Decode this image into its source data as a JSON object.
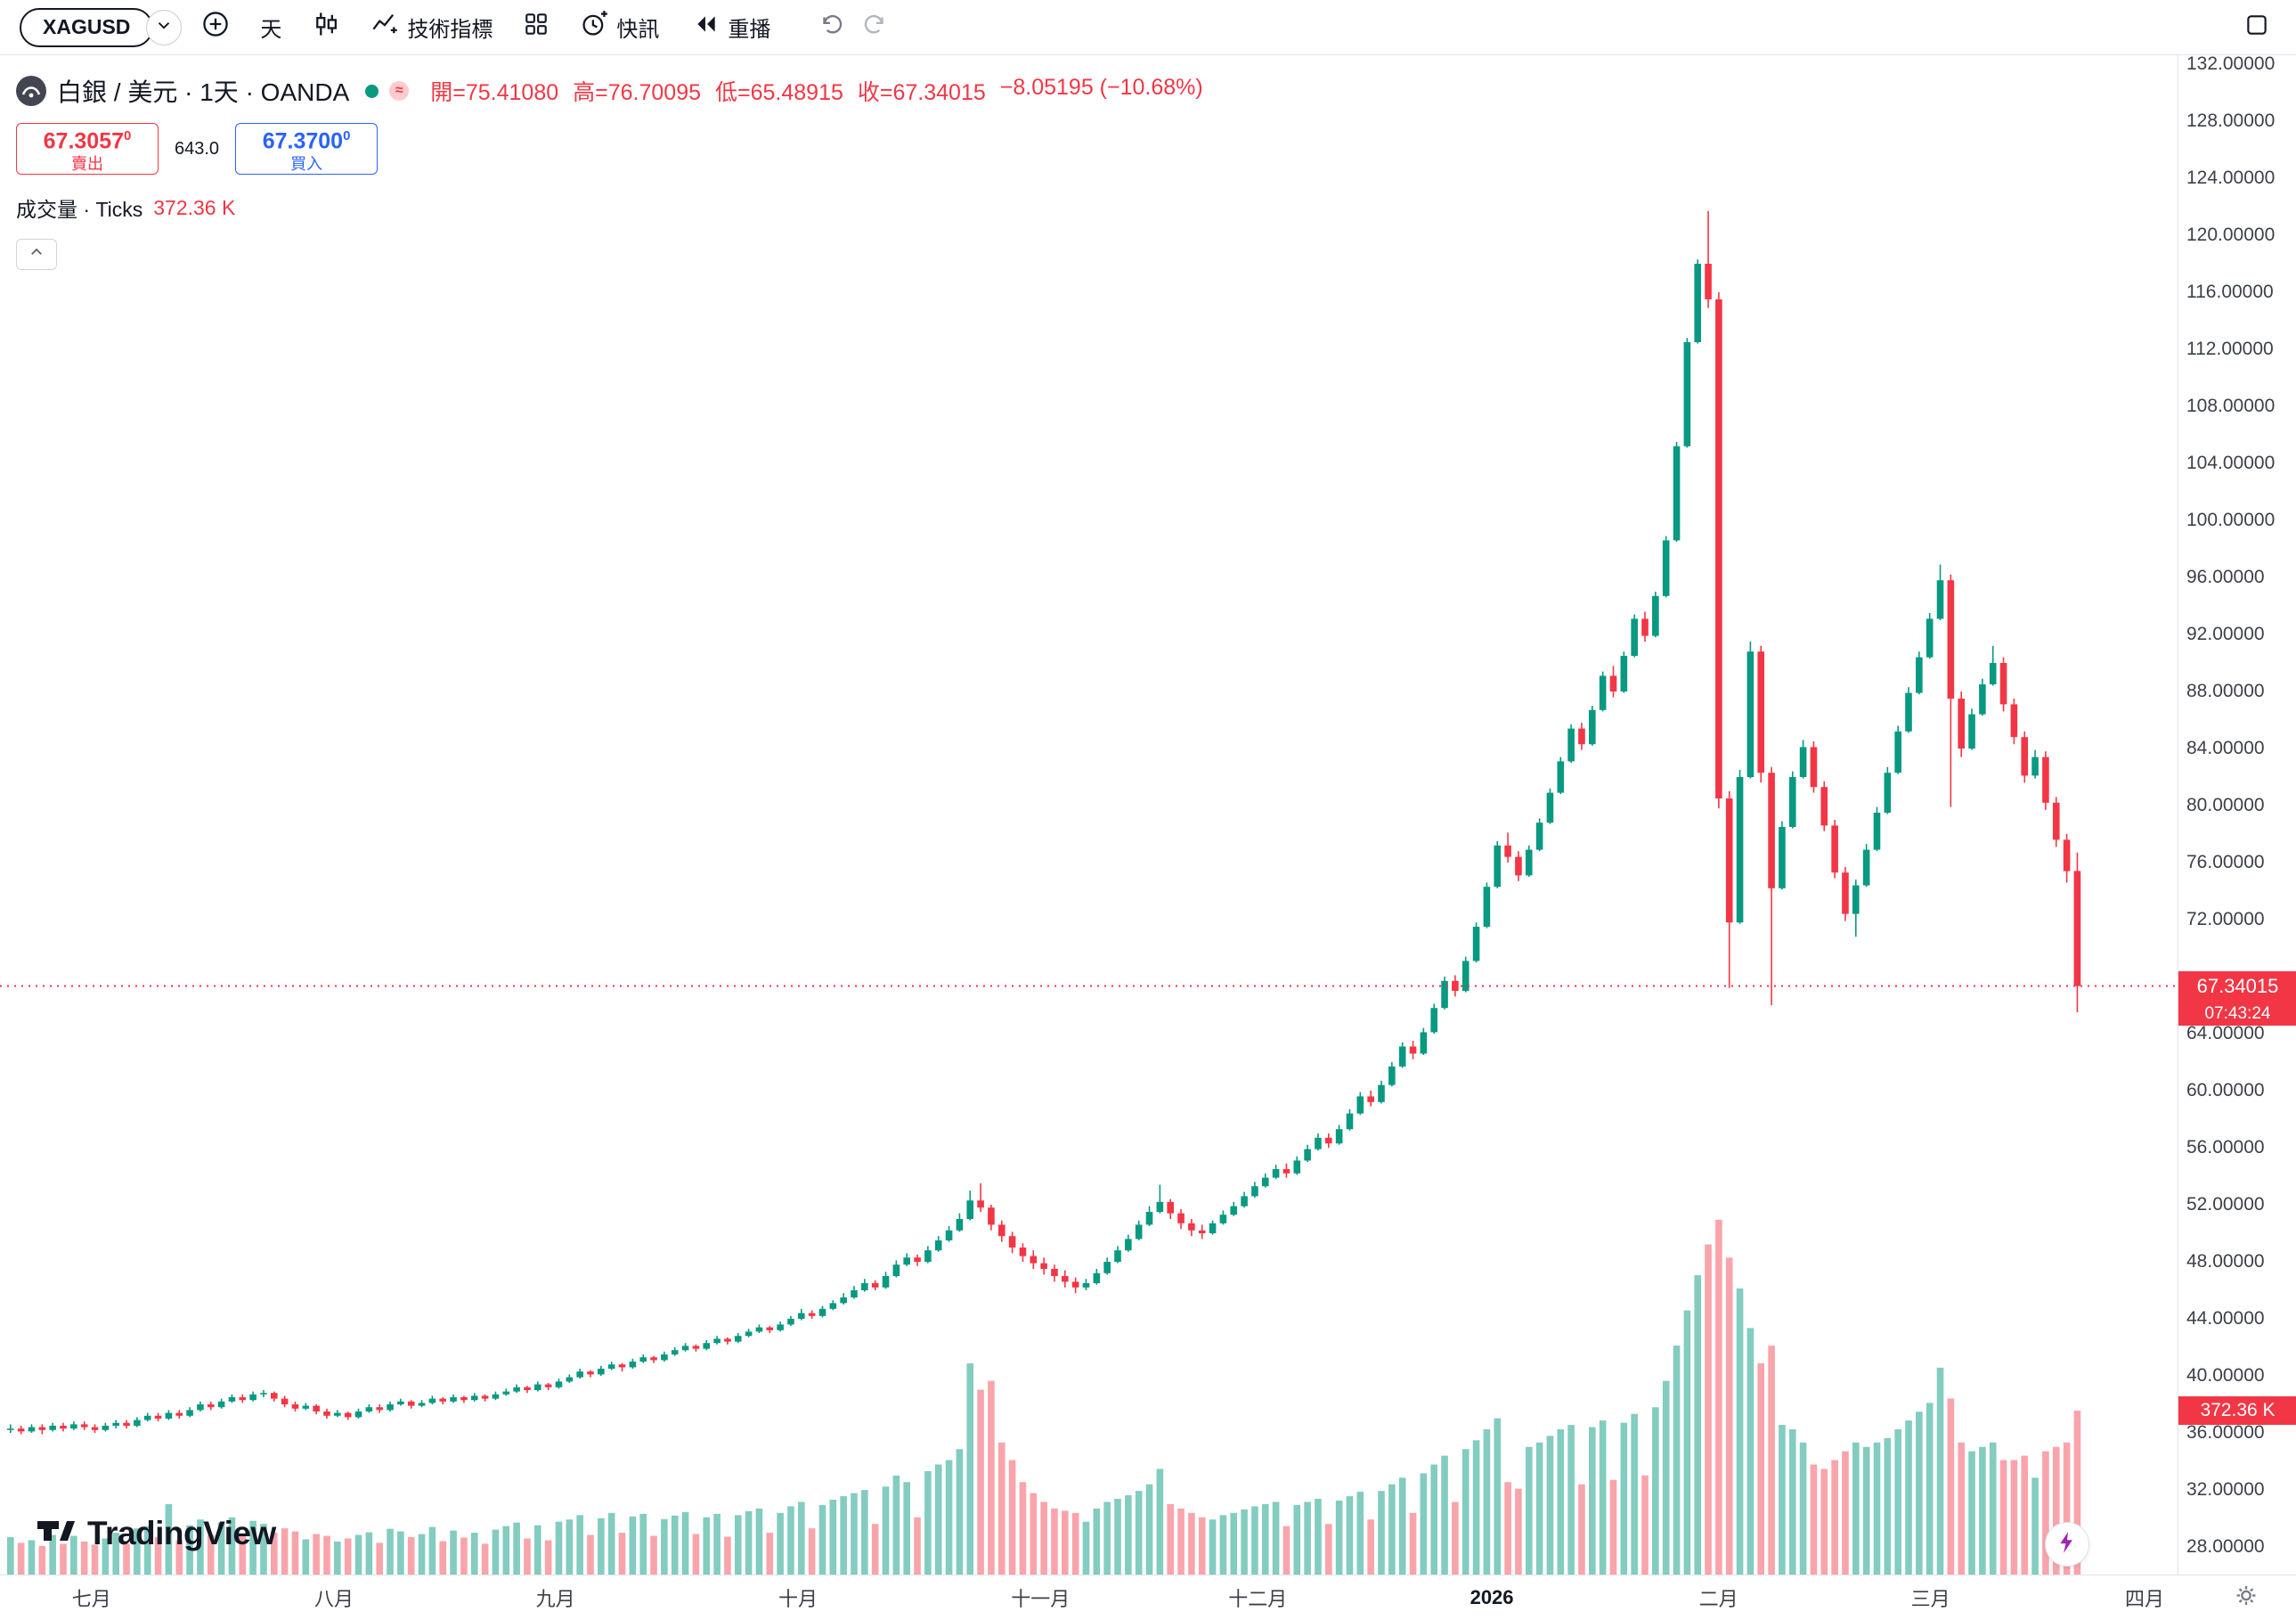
{
  "toolbar": {
    "symbol": "XAGUSD",
    "interval": "天",
    "indicators_label": "技術指標",
    "alerts_label": "快訊",
    "replay_label": "重播"
  },
  "header": {
    "title": "白銀 / 美元 · 1天 · OANDA",
    "ohlc": [
      "開=75.41080",
      "高=76.70095",
      "低=65.48915",
      "收=67.34015",
      "−8.05195 (−10.68%)"
    ]
  },
  "trade_panel": {
    "sell_price": "67.3057",
    "sell_sup": "0",
    "sell_label": "賣出",
    "spread": "643.0",
    "buy_price": "67.3700",
    "buy_sup": "0",
    "buy_label": "買入"
  },
  "volume_row": {
    "label": "成交量 · Ticks",
    "value": "372.36 K"
  },
  "footer": {
    "brand": "TradingView"
  },
  "chart_data": {
    "type": "candlestick",
    "symbol": "XAGUSD",
    "title": "白銀 / 美元 · 1天 · OANDA",
    "colors": {
      "up": "#089981",
      "down": "#F23645",
      "vol_up": "rgba(8,153,129,0.5)",
      "vol_down": "rgba(242,54,69,0.45)"
    },
    "y_axis": {
      "min": 27.5,
      "max": 132.6,
      "tick_step": 4,
      "tick_labels": [
        "132.00000",
        "128.00000",
        "124.00000",
        "120.00000",
        "116.00000",
        "112.00000",
        "108.00000",
        "104.00000",
        "100.00000",
        "96.00000",
        "92.00000",
        "88.00000",
        "84.00000",
        "80.00000",
        "76.00000",
        "72.00000",
        "64.00000",
        "60.00000",
        "56.00000",
        "52.00000",
        "48.00000",
        "44.00000",
        "40.00000",
        "36.00000",
        "32.00000",
        "28.00000"
      ]
    },
    "x_axis": {
      "labels": [
        {
          "label": "七月",
          "index": 8
        },
        {
          "label": "八月",
          "index": 31
        },
        {
          "label": "九月",
          "index": 52
        },
        {
          "label": "十月",
          "index": 75
        },
        {
          "label": "十一月",
          "index": 98
        },
        {
          "label": "十二月",
          "index": 118.6
        },
        {
          "label": "2026",
          "index": 140.8,
          "bold": true
        },
        {
          "label": "二月",
          "index": 162.3
        },
        {
          "label": "三月",
          "index": 182.4
        },
        {
          "label": "四月",
          "index": 202.7
        }
      ]
    },
    "last_price": {
      "value": 67.34015,
      "label": "67.34015",
      "countdown": "07:43:24"
    },
    "volume_label": "372.36 K",
    "volume_unit": "K",
    "ohlcv": [
      [
        36.2,
        36.6,
        36.0,
        36.3,
        85
      ],
      [
        36.3,
        36.5,
        35.9,
        36.1,
        72
      ],
      [
        36.1,
        36.6,
        36.0,
        36.4,
        78
      ],
      [
        36.4,
        36.6,
        35.9,
        36.2,
        65
      ],
      [
        36.2,
        36.7,
        36.1,
        36.5,
        90
      ],
      [
        36.5,
        36.7,
        36.1,
        36.3,
        70
      ],
      [
        36.3,
        36.8,
        36.2,
        36.6,
        88
      ],
      [
        36.6,
        36.8,
        36.2,
        36.4,
        75
      ],
      [
        36.4,
        36.6,
        36.0,
        36.2,
        68
      ],
      [
        36.2,
        36.7,
        36.1,
        36.5,
        82
      ],
      [
        36.5,
        36.9,
        36.3,
        36.7,
        95
      ],
      [
        36.7,
        36.9,
        36.3,
        36.5,
        70
      ],
      [
        36.5,
        37.1,
        36.4,
        36.9,
        105
      ],
      [
        36.9,
        37.4,
        36.8,
        37.2,
        110
      ],
      [
        37.2,
        37.4,
        36.8,
        37.0,
        85
      ],
      [
        37.0,
        37.6,
        36.9,
        37.4,
        160
      ],
      [
        37.4,
        37.6,
        37.0,
        37.2,
        78
      ],
      [
        37.2,
        37.8,
        37.1,
        37.6,
        112
      ],
      [
        37.6,
        38.2,
        37.5,
        38.0,
        125
      ],
      [
        38.0,
        38.2,
        37.6,
        37.8,
        90
      ],
      [
        37.8,
        38.4,
        37.7,
        38.2,
        118
      ],
      [
        38.2,
        38.7,
        38.1,
        38.5,
        130
      ],
      [
        38.5,
        38.7,
        38.1,
        38.3,
        88
      ],
      [
        38.3,
        38.9,
        38.2,
        38.7,
        122
      ],
      [
        38.7,
        39.0,
        38.5,
        38.8,
        115
      ],
      [
        38.8,
        38.9,
        38.2,
        38.4,
        95
      ],
      [
        38.4,
        38.6,
        37.8,
        38.0,
        105
      ],
      [
        38.0,
        38.2,
        37.5,
        37.7,
        98
      ],
      [
        37.7,
        38.1,
        37.6,
        37.9,
        80
      ],
      [
        37.9,
        38.0,
        37.3,
        37.5,
        92
      ],
      [
        37.5,
        37.7,
        37.0,
        37.2,
        88
      ],
      [
        37.2,
        37.6,
        37.1,
        37.4,
        75
      ],
      [
        37.4,
        37.5,
        36.9,
        37.1,
        82
      ],
      [
        37.1,
        37.7,
        37.0,
        37.5,
        90
      ],
      [
        37.5,
        38.0,
        37.4,
        37.8,
        96
      ],
      [
        37.8,
        38.0,
        37.4,
        37.6,
        72
      ],
      [
        37.6,
        38.2,
        37.5,
        38.0,
        104
      ],
      [
        38.0,
        38.4,
        37.9,
        38.2,
        98
      ],
      [
        38.2,
        38.3,
        37.7,
        37.9,
        85
      ],
      [
        37.9,
        38.3,
        37.8,
        38.1,
        92
      ],
      [
        38.1,
        38.6,
        38.0,
        38.4,
        108
      ],
      [
        38.4,
        38.5,
        38.0,
        38.2,
        76
      ],
      [
        38.2,
        38.7,
        38.1,
        38.5,
        100
      ],
      [
        38.5,
        38.6,
        38.1,
        38.3,
        84
      ],
      [
        38.3,
        38.8,
        38.2,
        38.6,
        95
      ],
      [
        38.6,
        38.7,
        38.2,
        38.4,
        70
      ],
      [
        38.4,
        38.9,
        38.3,
        38.7,
        102
      ],
      [
        38.7,
        39.1,
        38.6,
        38.9,
        110
      ],
      [
        38.9,
        39.4,
        38.8,
        39.2,
        118
      ],
      [
        39.2,
        39.3,
        38.8,
        39.0,
        82
      ],
      [
        39.0,
        39.6,
        38.9,
        39.4,
        112
      ],
      [
        39.4,
        39.5,
        39.0,
        39.2,
        78
      ],
      [
        39.2,
        39.8,
        39.1,
        39.6,
        120
      ],
      [
        39.6,
        40.1,
        39.5,
        39.9,
        125
      ],
      [
        39.9,
        40.5,
        39.8,
        40.3,
        135
      ],
      [
        40.3,
        40.4,
        39.9,
        40.1,
        90
      ],
      [
        40.1,
        40.7,
        40.0,
        40.5,
        128
      ],
      [
        40.5,
        41.0,
        40.4,
        40.8,
        140
      ],
      [
        40.8,
        40.9,
        40.3,
        40.6,
        95
      ],
      [
        40.6,
        41.2,
        40.5,
        41.0,
        132
      ],
      [
        41.0,
        41.5,
        40.9,
        41.3,
        138
      ],
      [
        41.3,
        41.4,
        40.9,
        41.1,
        88
      ],
      [
        41.1,
        41.7,
        41.0,
        41.5,
        126
      ],
      [
        41.5,
        42.0,
        41.4,
        41.8,
        134
      ],
      [
        41.8,
        42.3,
        41.7,
        42.1,
        142
      ],
      [
        42.1,
        42.2,
        41.7,
        41.9,
        92
      ],
      [
        41.9,
        42.5,
        41.8,
        42.3,
        130
      ],
      [
        42.3,
        42.8,
        42.2,
        42.6,
        138
      ],
      [
        42.6,
        42.7,
        42.2,
        42.4,
        86
      ],
      [
        42.4,
        43.0,
        42.3,
        42.8,
        135
      ],
      [
        42.8,
        43.3,
        42.7,
        43.1,
        144
      ],
      [
        43.1,
        43.6,
        43.0,
        43.4,
        150
      ],
      [
        43.4,
        43.5,
        43.0,
        43.2,
        95
      ],
      [
        43.2,
        43.8,
        43.1,
        43.6,
        140
      ],
      [
        43.6,
        44.2,
        43.5,
        44.0,
        155
      ],
      [
        44.0,
        44.7,
        43.9,
        44.4,
        165
      ],
      [
        44.4,
        44.6,
        44.0,
        44.2,
        105
      ],
      [
        44.2,
        44.9,
        44.1,
        44.7,
        158
      ],
      [
        44.7,
        45.3,
        44.6,
        45.1,
        170
      ],
      [
        45.1,
        45.8,
        45.0,
        45.5,
        178
      ],
      [
        45.5,
        46.3,
        45.4,
        46.0,
        185
      ],
      [
        46.0,
        46.8,
        45.9,
        46.5,
        192
      ],
      [
        46.5,
        46.7,
        46.0,
        46.2,
        115
      ],
      [
        46.2,
        47.3,
        46.1,
        47.0,
        200
      ],
      [
        47.0,
        48.1,
        46.9,
        47.8,
        225
      ],
      [
        47.8,
        48.6,
        47.7,
        48.3,
        210
      ],
      [
        48.3,
        48.5,
        47.7,
        48.0,
        130
      ],
      [
        48.0,
        49.1,
        47.9,
        48.8,
        235
      ],
      [
        48.8,
        49.8,
        48.7,
        49.5,
        250
      ],
      [
        49.5,
        50.5,
        49.4,
        50.2,
        260
      ],
      [
        50.2,
        51.4,
        50.1,
        51.0,
        285
      ],
      [
        51.0,
        53.0,
        50.9,
        52.3,
        480
      ],
      [
        52.3,
        53.5,
        51.5,
        51.8,
        420
      ],
      [
        51.8,
        52.0,
        50.2,
        50.6,
        440
      ],
      [
        50.6,
        50.9,
        49.4,
        49.8,
        300
      ],
      [
        49.8,
        50.1,
        48.6,
        49.0,
        260
      ],
      [
        49.0,
        49.3,
        48.0,
        48.4,
        210
      ],
      [
        48.4,
        48.8,
        47.5,
        47.9,
        185
      ],
      [
        47.9,
        48.3,
        47.1,
        47.5,
        165
      ],
      [
        47.5,
        47.8,
        46.6,
        47.0,
        150
      ],
      [
        47.0,
        47.4,
        46.2,
        46.6,
        145
      ],
      [
        46.6,
        46.9,
        45.8,
        46.2,
        140
      ],
      [
        46.2,
        46.8,
        46.0,
        46.5,
        120
      ],
      [
        46.5,
        47.5,
        46.4,
        47.2,
        150
      ],
      [
        47.2,
        48.3,
        47.1,
        48.0,
        165
      ],
      [
        48.0,
        49.1,
        47.9,
        48.8,
        172
      ],
      [
        48.8,
        49.9,
        48.7,
        49.6,
        180
      ],
      [
        49.6,
        50.9,
        49.5,
        50.6,
        190
      ],
      [
        50.6,
        51.9,
        50.5,
        51.5,
        205
      ],
      [
        51.5,
        53.4,
        51.4,
        52.2,
        240
      ],
      [
        52.2,
        52.4,
        51.0,
        51.4,
        160
      ],
      [
        51.4,
        51.7,
        50.3,
        50.7,
        150
      ],
      [
        50.7,
        51.0,
        49.8,
        50.2,
        140
      ],
      [
        50.2,
        50.6,
        49.6,
        50.0,
        130
      ],
      [
        50.0,
        50.9,
        49.9,
        50.7,
        125
      ],
      [
        50.7,
        51.6,
        50.6,
        51.3,
        135
      ],
      [
        51.3,
        52.2,
        51.2,
        51.9,
        140
      ],
      [
        51.9,
        52.9,
        51.8,
        52.6,
        148
      ],
      [
        52.6,
        53.6,
        52.5,
        53.3,
        155
      ],
      [
        53.3,
        54.2,
        53.2,
        53.9,
        160
      ],
      [
        53.9,
        54.8,
        53.8,
        54.5,
        165
      ],
      [
        54.5,
        54.9,
        53.9,
        54.2,
        110
      ],
      [
        54.2,
        55.4,
        54.1,
        55.1,
        158
      ],
      [
        55.1,
        56.2,
        55.0,
        55.9,
        165
      ],
      [
        55.9,
        57.0,
        55.8,
        56.7,
        172
      ],
      [
        56.7,
        57.0,
        56.0,
        56.3,
        115
      ],
      [
        56.3,
        57.6,
        56.2,
        57.3,
        168
      ],
      [
        57.3,
        58.7,
        57.2,
        58.4,
        178
      ],
      [
        58.4,
        59.9,
        58.3,
        59.6,
        188
      ],
      [
        59.6,
        60.0,
        58.9,
        59.2,
        125
      ],
      [
        59.2,
        60.7,
        59.1,
        60.4,
        190
      ],
      [
        60.4,
        62.0,
        60.3,
        61.7,
        205
      ],
      [
        61.7,
        63.4,
        61.6,
        63.1,
        220
      ],
      [
        63.1,
        63.5,
        62.2,
        62.6,
        140
      ],
      [
        62.6,
        64.4,
        62.5,
        64.1,
        230
      ],
      [
        64.1,
        66.1,
        64.0,
        65.8,
        250
      ],
      [
        65.8,
        68.0,
        65.7,
        67.7,
        270
      ],
      [
        67.7,
        68.1,
        66.6,
        67.0,
        165
      ],
      [
        67.0,
        69.4,
        66.9,
        69.1,
        285
      ],
      [
        69.1,
        71.8,
        69.0,
        71.5,
        305
      ],
      [
        71.5,
        74.6,
        71.4,
        74.3,
        330
      ],
      [
        74.3,
        77.5,
        74.2,
        77.2,
        355
      ],
      [
        77.2,
        78.1,
        76.0,
        76.4,
        210
      ],
      [
        76.4,
        76.8,
        74.7,
        75.1,
        195
      ],
      [
        75.1,
        77.2,
        75.0,
        76.9,
        290
      ],
      [
        76.9,
        79.1,
        76.8,
        78.8,
        300
      ],
      [
        78.8,
        81.2,
        78.7,
        80.9,
        315
      ],
      [
        80.9,
        83.4,
        80.8,
        83.1,
        330
      ],
      [
        83.1,
        85.7,
        83.0,
        85.4,
        340
      ],
      [
        85.4,
        85.8,
        83.9,
        84.3,
        205
      ],
      [
        84.3,
        87.0,
        84.2,
        86.7,
        335
      ],
      [
        86.7,
        89.4,
        86.6,
        89.1,
        350
      ],
      [
        89.1,
        89.8,
        87.6,
        88.0,
        215
      ],
      [
        88.0,
        90.8,
        87.9,
        90.5,
        345
      ],
      [
        90.5,
        93.4,
        90.4,
        93.1,
        365
      ],
      [
        93.1,
        93.6,
        91.5,
        91.9,
        225
      ],
      [
        91.9,
        95.0,
        91.8,
        94.7,
        380
      ],
      [
        94.7,
        98.9,
        94.6,
        98.6,
        440
      ],
      [
        98.6,
        105.5,
        98.5,
        105.2,
        520
      ],
      [
        105.2,
        112.8,
        105.1,
        112.5,
        600
      ],
      [
        112.5,
        118.3,
        112.4,
        118.0,
        680
      ],
      [
        118.0,
        121.7,
        114.9,
        115.5,
        750
      ],
      [
        115.5,
        116.0,
        79.8,
        80.5,
        806
      ],
      [
        80.5,
        81.0,
        67.2,
        71.8,
        720
      ],
      [
        71.8,
        82.5,
        71.7,
        82.0,
        650
      ],
      [
        82.0,
        91.5,
        81.9,
        90.8,
        560
      ],
      [
        90.8,
        91.2,
        81.6,
        82.3,
        480
      ],
      [
        82.3,
        82.7,
        66.0,
        74.2,
        520
      ],
      [
        74.2,
        78.9,
        74.1,
        78.5,
        340
      ],
      [
        78.5,
        82.4,
        78.4,
        82.0,
        330
      ],
      [
        82.0,
        84.6,
        81.9,
        84.1,
        300
      ],
      [
        84.1,
        84.5,
        80.9,
        81.3,
        250
      ],
      [
        81.3,
        81.7,
        78.2,
        78.6,
        240
      ],
      [
        78.6,
        79.0,
        74.9,
        75.3,
        260
      ],
      [
        75.3,
        75.7,
        71.9,
        72.4,
        280
      ],
      [
        72.4,
        74.8,
        70.8,
        74.4,
        300
      ],
      [
        74.4,
        77.3,
        74.3,
        76.9,
        290
      ],
      [
        76.9,
        79.9,
        76.8,
        79.5,
        300
      ],
      [
        79.5,
        82.7,
        79.4,
        82.3,
        310
      ],
      [
        82.3,
        85.6,
        82.2,
        85.2,
        330
      ],
      [
        85.2,
        88.3,
        85.1,
        87.9,
        350
      ],
      [
        87.9,
        90.8,
        87.8,
        90.4,
        370
      ],
      [
        90.4,
        93.5,
        90.3,
        93.1,
        390
      ],
      [
        93.1,
        96.9,
        93.0,
        95.8,
        470
      ],
      [
        95.8,
        96.2,
        79.9,
        87.5,
        400
      ],
      [
        87.5,
        88.0,
        83.4,
        84.0,
        300
      ],
      [
        84.0,
        86.8,
        83.9,
        86.4,
        280
      ],
      [
        86.4,
        88.9,
        86.3,
        88.5,
        290
      ],
      [
        88.5,
        91.2,
        88.4,
        90.0,
        300
      ],
      [
        90.0,
        90.4,
        86.6,
        87.1,
        260
      ],
      [
        87.1,
        87.5,
        84.3,
        84.8,
        260
      ],
      [
        84.8,
        85.2,
        81.6,
        82.1,
        270
      ],
      [
        82.1,
        83.9,
        81.9,
        83.4,
        220
      ],
      [
        83.4,
        83.8,
        79.7,
        80.2,
        280
      ],
      [
        80.2,
        80.6,
        77.1,
        77.6,
        290
      ],
      [
        77.6,
        78.0,
        74.6,
        75.4,
        300
      ],
      [
        75.41,
        76.7,
        65.49,
        67.34,
        372.36
      ]
    ]
  }
}
